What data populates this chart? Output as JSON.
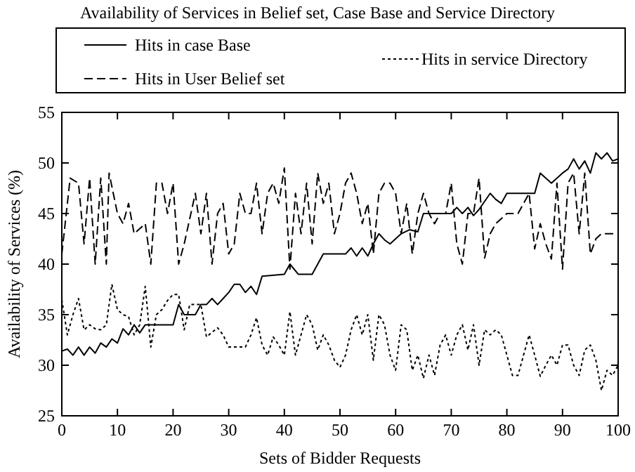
{
  "chart_data": {
    "type": "line",
    "title": "Availability of Services in Belief set, Case Base and Service Directory",
    "xlabel": "Sets of Bidder Requests",
    "ylabel": "Availability of Services (%)",
    "xlim": [
      0,
      100
    ],
    "ylim": [
      25,
      55
    ],
    "xticks": [
      0,
      10,
      20,
      30,
      40,
      50,
      60,
      70,
      80,
      90,
      100
    ],
    "yticks": [
      25,
      30,
      35,
      40,
      45,
      50,
      55
    ],
    "grid": false,
    "legend": "top",
    "marker": "none",
    "series": [
      {
        "name": "Hits in case Base",
        "color": "#000000",
        "line_style": "solid",
        "x": [
          0,
          1,
          2,
          3,
          4,
          5,
          6,
          7,
          8,
          9,
          10,
          11,
          12,
          13,
          14,
          15,
          16,
          20,
          21,
          22,
          24,
          25,
          26,
          27,
          28,
          29,
          30,
          31,
          32,
          33,
          34,
          35,
          36,
          40,
          41,
          42.5,
          45,
          47,
          51,
          52,
          53,
          54,
          55,
          56,
          57,
          58,
          59,
          61,
          62.5,
          64,
          65,
          70,
          71,
          72,
          73,
          74,
          75,
          77,
          78,
          79,
          80,
          85,
          86,
          88,
          90,
          91,
          92,
          93,
          94,
          95,
          96,
          97,
          98,
          99,
          100
        ],
        "values": [
          31.4,
          31.6,
          31,
          31.8,
          31,
          31.8,
          31.2,
          32.2,
          31.8,
          32.6,
          32.2,
          33.6,
          33,
          34,
          33.2,
          34,
          34,
          34,
          36,
          35,
          35,
          36,
          36,
          36.6,
          36,
          36.6,
          37.2,
          38,
          38,
          37.2,
          37.8,
          37,
          38.8,
          39,
          40,
          39,
          39,
          41,
          41,
          41.6,
          40.8,
          41.6,
          40.8,
          42,
          43,
          42.4,
          42,
          43,
          43.4,
          43.2,
          45,
          45,
          45.6,
          45,
          45.6,
          44.8,
          45.4,
          47,
          46.4,
          46,
          47,
          47,
          49,
          48,
          49,
          49.4,
          50.4,
          49.4,
          50.2,
          49,
          51,
          50.4,
          51,
          50.2,
          50.4
        ]
      },
      {
        "name": "Hits in User Belief set",
        "color": "#000000",
        "line_style": "dashed",
        "x": [
          0,
          1.5,
          3,
          4,
          5,
          6,
          7,
          8,
          8.5,
          10,
          11,
          12,
          13,
          15,
          16,
          17,
          18,
          19,
          20,
          21,
          22,
          24,
          25,
          26,
          27,
          28,
          29,
          30,
          31,
          32,
          33,
          34,
          35,
          36,
          37,
          38,
          39,
          40,
          41,
          42,
          43,
          44,
          45,
          46,
          47,
          48,
          49,
          50,
          51,
          52,
          53,
          54,
          55,
          56,
          57,
          58,
          59,
          60,
          61,
          62,
          63,
          64,
          65,
          66,
          67,
          68,
          69,
          70,
          71,
          72,
          73,
          74,
          75,
          76,
          77,
          78,
          80,
          82,
          84,
          85,
          86,
          87,
          88,
          89,
          90,
          91,
          92,
          93,
          94,
          95,
          96,
          97,
          100
        ],
        "values": [
          41,
          48.5,
          48,
          42,
          48.5,
          40,
          48.5,
          40,
          49,
          45,
          44,
          46,
          43,
          44,
          40,
          48,
          48,
          45,
          48,
          40,
          42,
          47,
          43,
          47,
          40,
          45,
          46,
          41,
          42,
          47,
          45,
          45,
          48,
          43,
          47,
          48,
          46,
          49.5,
          39.5,
          47,
          43,
          48,
          42,
          49,
          46,
          48,
          43,
          45,
          48,
          49,
          47,
          44,
          46,
          41,
          47,
          48,
          48,
          47,
          43,
          46,
          41,
          45,
          47,
          45,
          44,
          45,
          45,
          48,
          42,
          40,
          45,
          45,
          48.5,
          40.6,
          43,
          44,
          45,
          45,
          47,
          41.5,
          44,
          42,
          40.5,
          48,
          39.5,
          48,
          49,
          43,
          49,
          41,
          42.5,
          43,
          43
        ]
      },
      {
        "name": "Hits in service Directory",
        "color": "#000000",
        "line_style": "dotted",
        "x": [
          0,
          1,
          2,
          3,
          4,
          5,
          6,
          7,
          8,
          9,
          10,
          11,
          12,
          13,
          14,
          15,
          16,
          17,
          18,
          19,
          20,
          21,
          22,
          23,
          24,
          25,
          26,
          28,
          29,
          30,
          33,
          34,
          35,
          36,
          37,
          38,
          39,
          40,
          41,
          42,
          43,
          44,
          45,
          46,
          47,
          48,
          49,
          50,
          51,
          52,
          53,
          54,
          55,
          56,
          57,
          58,
          59,
          60,
          61,
          62,
          63,
          64,
          65,
          66,
          67,
          68,
          69,
          70,
          71,
          72,
          73,
          74,
          75,
          76,
          77,
          78,
          79,
          80,
          81,
          82,
          83,
          84,
          85,
          86,
          87,
          88,
          89,
          90,
          91,
          92,
          93,
          94,
          95,
          96,
          97,
          98,
          99,
          100
        ],
        "values": [
          36.5,
          33,
          35,
          36.6,
          33.5,
          34,
          33.6,
          33.5,
          34,
          38,
          35.5,
          35,
          34.8,
          33,
          34,
          37.8,
          31.8,
          35,
          35.5,
          36.4,
          37,
          37,
          33.5,
          36,
          36,
          36,
          32.8,
          33.7,
          33,
          31.8,
          31.8,
          33,
          34.7,
          32,
          31,
          32.8,
          32,
          31,
          35.3,
          31,
          33,
          35,
          34,
          31.5,
          33,
          32,
          30.5,
          29.8,
          31,
          33.5,
          35,
          33,
          35,
          30.5,
          35,
          34,
          31,
          29.5,
          34,
          33.5,
          29.5,
          31,
          28.7,
          31,
          29,
          32,
          33,
          31,
          33,
          34,
          31.5,
          34,
          30,
          33.5,
          33,
          33.5,
          33,
          31,
          29,
          29,
          31,
          33,
          31,
          28.9,
          30,
          31,
          30,
          32,
          32,
          30,
          29,
          31.5,
          32,
          30.5,
          27.5,
          29.5,
          29,
          30
        ]
      }
    ]
  }
}
